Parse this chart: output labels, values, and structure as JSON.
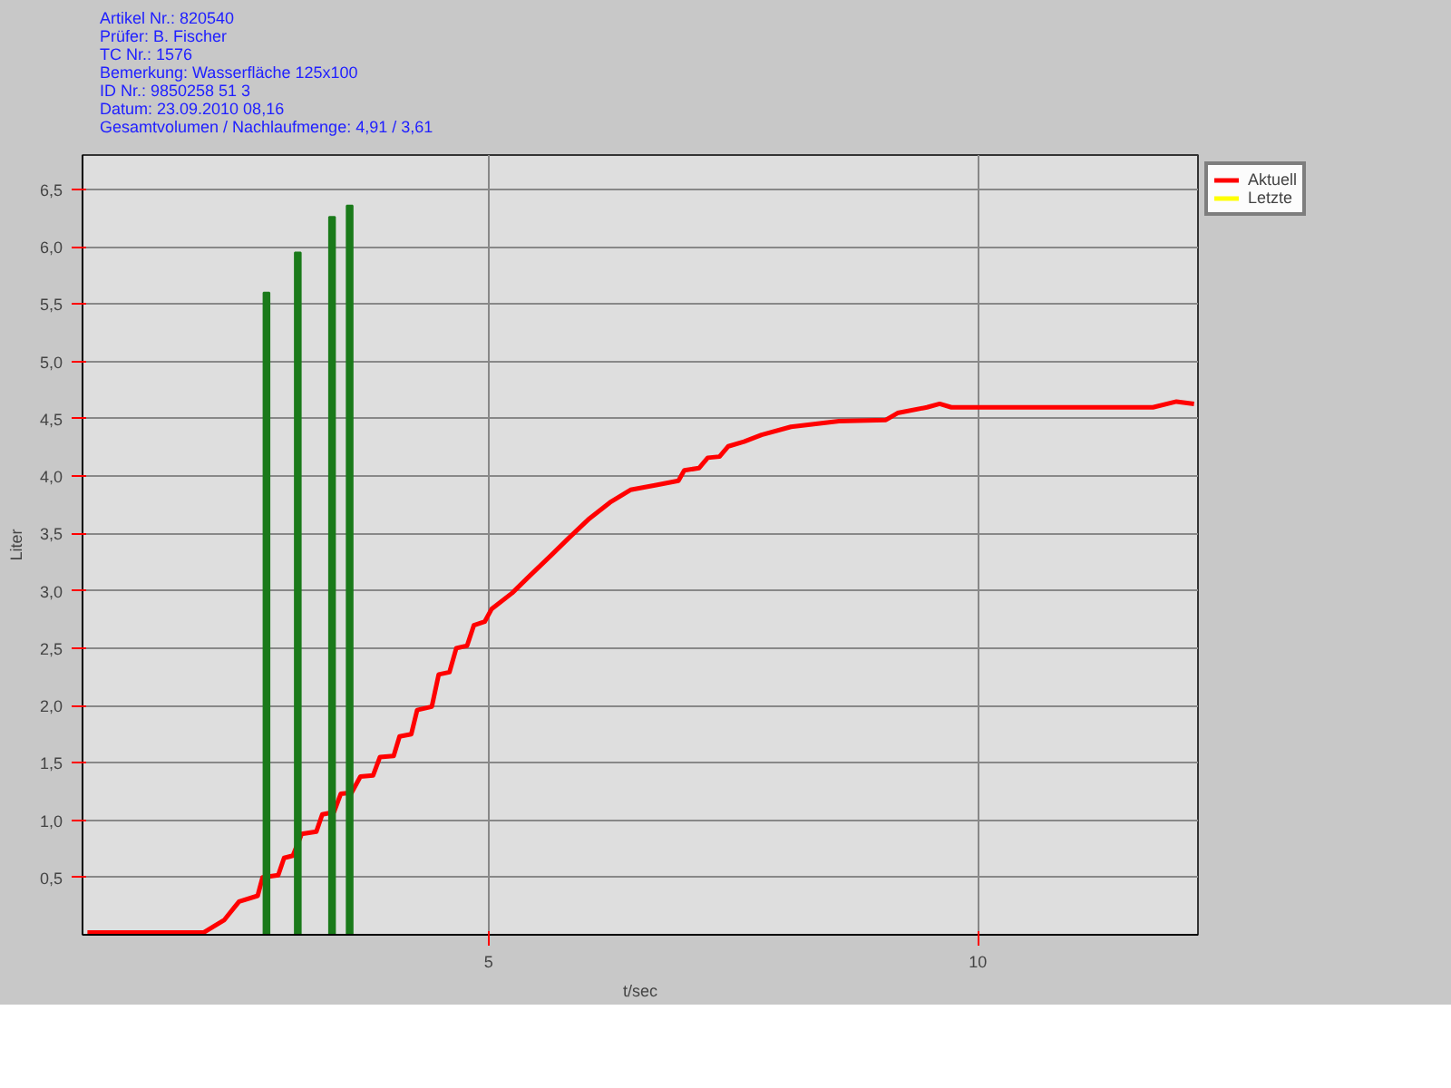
{
  "chart_data": {
    "type": "line",
    "annotations": [
      "Artikel Nr.: 820540",
      "Prüfer: B. Fischer",
      "TC Nr.: 1576",
      "Bemerkung: Wasserfläche 125x100",
      "ID Nr.: 9850258 51 3",
      "Datum: 23.09.2010 08,16",
      "Gesamtvolumen / Nachlaufmenge:  4,91 /  3,61"
    ],
    "xlabel": "t/sec",
    "ylabel": "Liter",
    "xlim": [
      0.85,
      12.25
    ],
    "ylim": [
      0,
      6.8
    ],
    "xticks": [
      5,
      10
    ],
    "yticks": [
      {
        "value": 0.5,
        "label": "0,5"
      },
      {
        "value": 1,
        "label": "1,0"
      },
      {
        "value": 1.5,
        "label": "1,5"
      },
      {
        "value": 2,
        "label": "2,0"
      },
      {
        "value": 2.5,
        "label": "2,5"
      },
      {
        "value": 3,
        "label": "3,0"
      },
      {
        "value": 3.5,
        "label": "3,5"
      },
      {
        "value": 4,
        "label": "4,0"
      },
      {
        "value": 4.5,
        "label": "4,5"
      },
      {
        "value": 5,
        "label": "5,0"
      },
      {
        "value": 5.5,
        "label": "5,5"
      },
      {
        "value": 6,
        "label": "6,0"
      },
      {
        "value": 6.5,
        "label": "6,5"
      }
    ],
    "grid": true,
    "legend": "top right",
    "series": [
      {
        "name": "Aktuell",
        "color": "#ff0000",
        "x": [
          0.9,
          1.5,
          2.09,
          2.3,
          2.45,
          2.64,
          2.69,
          2.85,
          2.91,
          3.0,
          3.09,
          3.24,
          3.3,
          3.42,
          3.49,
          3.6,
          3.69,
          3.82,
          3.89,
          4.03,
          4.09,
          4.21,
          4.27,
          4.42,
          4.49,
          4.6,
          4.67,
          4.78,
          4.85,
          4.96,
          5.03,
          5.24,
          5.42,
          5.64,
          5.82,
          6.03,
          6.24,
          6.45,
          6.7,
          6.94,
          7.0,
          7.15,
          7.24,
          7.36,
          7.45,
          7.61,
          7.79,
          8.09,
          8.58,
          9.06,
          9.18,
          9.48,
          9.61,
          9.73,
          10.52,
          11.79,
          12.03,
          12.21
        ],
        "values": [
          0.02,
          0.02,
          0.02,
          0.13,
          0.29,
          0.34,
          0.5,
          0.52,
          0.67,
          0.69,
          0.88,
          0.9,
          1.05,
          1.07,
          1.23,
          1.24,
          1.38,
          1.39,
          1.55,
          1.56,
          1.73,
          1.75,
          1.96,
          1.99,
          2.27,
          2.29,
          2.5,
          2.52,
          2.7,
          2.73,
          2.84,
          2.98,
          3.13,
          3.31,
          3.46,
          3.63,
          3.77,
          3.88,
          3.92,
          3.96,
          4.05,
          4.07,
          4.16,
          4.17,
          4.26,
          4.3,
          4.36,
          4.43,
          4.48,
          4.49,
          4.55,
          4.6,
          4.63,
          4.6,
          4.6,
          4.6,
          4.65,
          4.63
        ]
      },
      {
        "name": "Letzte",
        "color": "#ffff00"
      },
      {
        "type": "bar",
        "color": "#1a7a1a",
        "x": [
          2.73,
          3.05,
          3.4,
          3.58
        ],
        "values": [
          5.6,
          5.95,
          6.26,
          6.36
        ]
      }
    ]
  }
}
